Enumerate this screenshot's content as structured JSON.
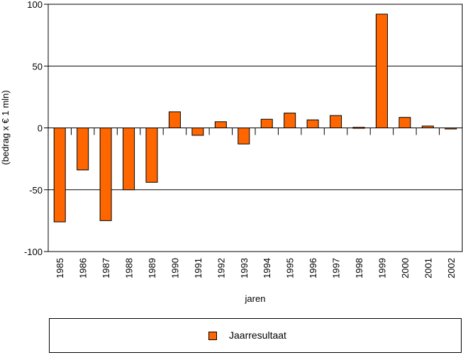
{
  "chart_data": {
    "type": "bar",
    "categories": [
      "1985",
      "1986",
      "1987",
      "1988",
      "1989",
      "1990",
      "1991",
      "1992",
      "1993",
      "1994",
      "1995",
      "1996",
      "1997",
      "1998",
      "1999",
      "2000",
      "2001",
      "2002"
    ],
    "series": [
      {
        "name": "Jaarresultaat",
        "values": [
          -76,
          -34,
          -75,
          -50,
          -44,
          13,
          -6,
          5,
          -13,
          7,
          12,
          6.5,
          10,
          0.5,
          92,
          8.5,
          1.5,
          -0.5
        ],
        "color": "#ff6600"
      }
    ],
    "xlabel": "jaren",
    "ylabel": "(bedrag x € 1 mln)",
    "ylim": [
      -100,
      100
    ],
    "yticks": [
      100,
      50,
      0,
      -50,
      -100
    ],
    "grid": true,
    "legend_position": "bottom"
  }
}
